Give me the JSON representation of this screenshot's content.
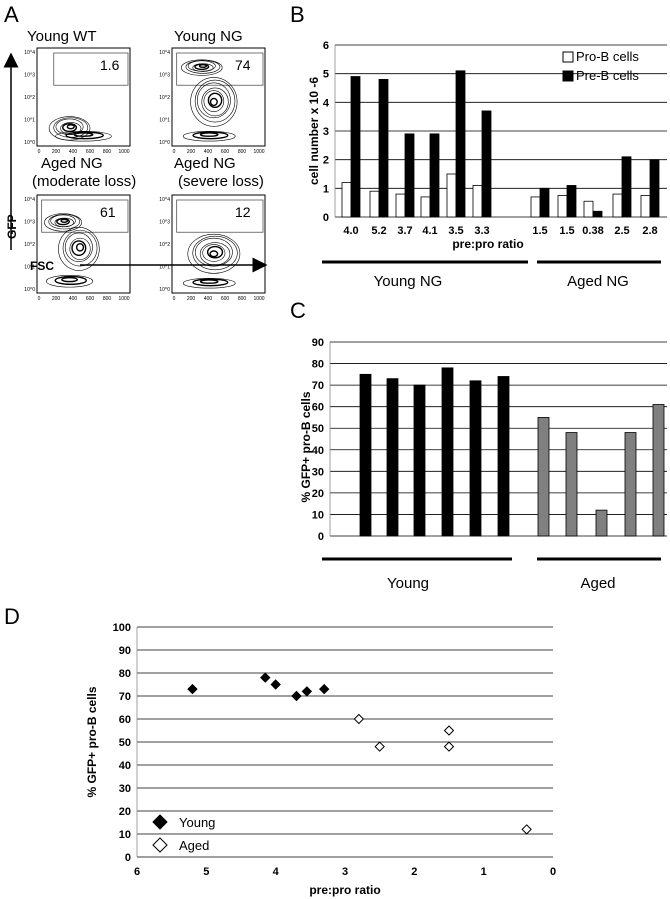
{
  "panels": {
    "A": {
      "letter": "A",
      "y_axis_label": "GFP",
      "x_axis_label": "FSC",
      "plots": [
        {
          "title": [
            "Young WT"
          ],
          "gate_percent": "1.6"
        },
        {
          "title": [
            "Young NG"
          ],
          "gate_percent": "74"
        },
        {
          "title": [
            "Aged NG",
            "(moderate loss)"
          ],
          "gate_percent": "61"
        },
        {
          "title": [
            "Aged NG",
            "(severe loss)"
          ],
          "gate_percent": "12"
        }
      ],
      "x_ticks": [
        "0",
        "200",
        "400",
        "600",
        "800",
        "1000"
      ],
      "y_ticks": [
        "10^0",
        "10^1",
        "10^2",
        "10^3",
        "10^4"
      ]
    },
    "B": {
      "letter": "B"
    },
    "C": {
      "letter": "C"
    },
    "D": {
      "letter": "D"
    }
  },
  "chart_data": [
    {
      "panel": "B",
      "type": "bar",
      "title": "",
      "xlabel": "pre:pro ratio",
      "ylabel": "cell number x 10 -6",
      "ylim": [
        0,
        6
      ],
      "yticks": [
        0,
        1,
        2,
        3,
        4,
        5,
        6
      ],
      "grid": true,
      "legend": "top-right",
      "categories": [
        "4.0",
        "5.2",
        "3.7",
        "4.1",
        "3.5",
        "3.3",
        "1.5",
        "1.5",
        "0.38",
        "2.5",
        "2.8"
      ],
      "groups": [
        {
          "label": "Young NG",
          "range": [
            0,
            5
          ]
        },
        {
          "label": "Aged NG",
          "range": [
            6,
            10
          ]
        }
      ],
      "series": [
        {
          "name": "Pro-B cells",
          "color": "#ffffff",
          "values": [
            1.2,
            0.9,
            0.8,
            0.7,
            1.5,
            1.1,
            0.7,
            0.75,
            0.55,
            0.8,
            0.75
          ]
        },
        {
          "name": "Pre-B cells",
          "color": "#000000",
          "values": [
            4.9,
            4.8,
            2.9,
            2.9,
            5.1,
            3.7,
            1.0,
            1.1,
            0.2,
            2.1,
            2.0
          ]
        }
      ]
    },
    {
      "panel": "C",
      "type": "bar",
      "title": "",
      "xlabel": "",
      "ylabel": "% GFP+ pro-B cells",
      "ylim": [
        0,
        90
      ],
      "yticks": [
        0,
        10,
        20,
        30,
        40,
        50,
        60,
        70,
        80,
        90
      ],
      "grid": true,
      "groups": [
        {
          "label": "Young",
          "color": "#000000",
          "values": [
            75,
            73,
            70,
            78,
            72,
            74
          ]
        },
        {
          "label": "Aged",
          "color": "#808080",
          "values": [
            55,
            48,
            12,
            48,
            61
          ]
        }
      ]
    },
    {
      "panel": "D",
      "type": "scatter",
      "title": "",
      "xlabel": "pre:pro ratio",
      "ylabel": "% GFP+ pro-B cells",
      "xlim": [
        6,
        0
      ],
      "ylim": [
        0,
        100
      ],
      "xticks": [
        6,
        5,
        4,
        3,
        2,
        1,
        0
      ],
      "yticks": [
        0,
        10,
        20,
        30,
        40,
        50,
        60,
        70,
        80,
        90,
        100
      ],
      "grid": true,
      "legend": "bottom-left",
      "series": [
        {
          "name": "Young",
          "marker": "filled-diamond",
          "color": "#000000",
          "points": [
            [
              5.2,
              73
            ],
            [
              4.15,
              78
            ],
            [
              4.0,
              75
            ],
            [
              3.7,
              70
            ],
            [
              3.55,
              72
            ],
            [
              3.3,
              73
            ]
          ]
        },
        {
          "name": "Aged",
          "marker": "open-diamond",
          "color": "#000000",
          "points": [
            [
              2.8,
              60
            ],
            [
              2.5,
              48
            ],
            [
              1.5,
              55
            ],
            [
              1.5,
              48
            ],
            [
              0.38,
              12
            ]
          ]
        }
      ]
    }
  ]
}
